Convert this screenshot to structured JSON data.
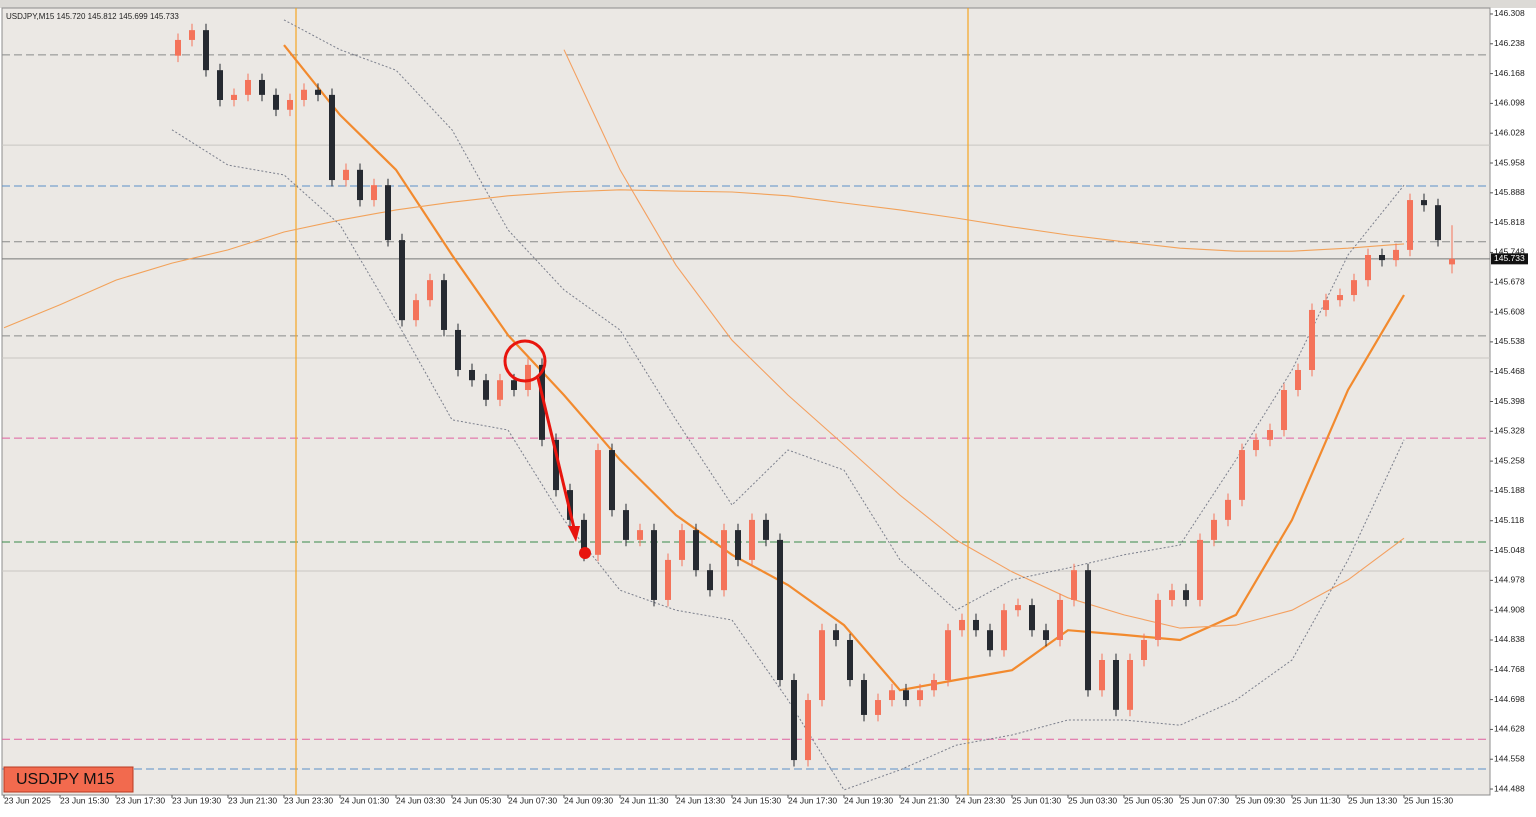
{
  "chart_data": {
    "type": "candlestick",
    "header": "USDJPY,M15 145.720 145.812 145.699 145.733",
    "symbol_label": "USDJPY M15",
    "current_price": 145.733,
    "bull_color": "#f4735a",
    "bear_color": "#262a31",
    "ylim": [
      144.474,
      146.322
    ],
    "yticks": [
      146.308,
      146.238,
      146.168,
      146.098,
      146.028,
      145.958,
      145.888,
      145.818,
      145.748,
      145.678,
      145.608,
      145.538,
      145.468,
      145.398,
      145.328,
      145.258,
      145.188,
      145.118,
      145.048,
      144.978,
      144.908,
      144.838,
      144.768,
      144.698,
      144.628,
      144.558,
      144.488
    ],
    "categories": [
      "23 Jun 2025",
      "23 Jun 15:30",
      "23 Jun 17:30",
      "23 Jun 19:30",
      "23 Jun 21:30",
      "23 Jun 23:30",
      "24 Jun 01:30",
      "24 Jun 03:30",
      "24 Jun 05:30",
      "24 Jun 07:30",
      "24 Jun 09:30",
      "24 Jun 11:30",
      "24 Jun 13:30",
      "24 Jun 15:30",
      "24 Jun 17:30",
      "24 Jun 19:30",
      "24 Jun 21:30",
      "24 Jun 23:30",
      "25 Jun 01:30",
      "25 Jun 03:30",
      "25 Jun 05:30",
      "25 Jun 07:30",
      "25 Jun 09:30",
      "25 Jun 11:30",
      "25 Jun 13:30",
      "25 Jun 15:30"
    ],
    "levels": [
      {
        "value": 146.212,
        "color": "#8a8a8a",
        "style": "dashed"
      },
      {
        "value": 146.0,
        "color": "#c8c6c2",
        "style": "solid"
      },
      {
        "value": 145.904,
        "color": "#5b8fc9",
        "style": "dashed"
      },
      {
        "value": 145.773,
        "color": "#8a8a8a",
        "style": "dashed"
      },
      {
        "value": 145.552,
        "color": "#8a8a8a",
        "style": "dashed"
      },
      {
        "value": 145.5,
        "color": "#c8c6c2",
        "style": "solid"
      },
      {
        "value": 145.312,
        "color": "#e0609f",
        "style": "dashed"
      },
      {
        "value": 145.068,
        "color": "#3a8a4a",
        "style": "dashed"
      },
      {
        "value": 145.0,
        "color": "#c8c6c2",
        "style": "solid"
      },
      {
        "value": 144.605,
        "color": "#e0609f",
        "style": "dashed"
      },
      {
        "value": 144.535,
        "color": "#5b8fc9",
        "style": "dashed"
      }
    ],
    "candles": [
      [
        146.21,
        146.262,
        146.195,
        146.247
      ],
      [
        146.247,
        146.285,
        146.232,
        146.27
      ],
      [
        146.27,
        146.285,
        146.161,
        146.176
      ],
      [
        146.176,
        146.191,
        146.091,
        146.106
      ],
      [
        146.106,
        146.133,
        146.091,
        146.118
      ],
      [
        146.118,
        146.168,
        146.103,
        146.153
      ],
      [
        146.153,
        146.168,
        146.103,
        146.118
      ],
      [
        146.118,
        146.133,
        146.068,
        146.083
      ],
      [
        146.083,
        146.121,
        146.068,
        146.106
      ],
      [
        146.106,
        146.145,
        146.091,
        146.13
      ],
      [
        146.13,
        146.145,
        146.103,
        146.118
      ],
      [
        146.118,
        146.133,
        145.903,
        145.918
      ],
      [
        145.918,
        145.957,
        145.903,
        145.942
      ],
      [
        145.942,
        145.957,
        145.856,
        145.871
      ],
      [
        145.871,
        145.921,
        145.856,
        145.906
      ],
      [
        145.906,
        145.921,
        145.762,
        145.777
      ],
      [
        145.777,
        145.792,
        145.574,
        145.589
      ],
      [
        145.589,
        145.651,
        145.574,
        145.636
      ],
      [
        145.636,
        145.698,
        145.621,
        145.683
      ],
      [
        145.683,
        145.698,
        145.551,
        145.566
      ],
      [
        145.566,
        145.581,
        145.457,
        145.472
      ],
      [
        145.472,
        145.487,
        145.433,
        145.448
      ],
      [
        145.448,
        145.463,
        145.387,
        145.402
      ],
      [
        145.402,
        145.463,
        145.387,
        145.448
      ],
      [
        145.448,
        145.463,
        145.41,
        145.425
      ],
      [
        145.425,
        145.499,
        145.41,
        145.484
      ],
      [
        145.484,
        145.499,
        145.293,
        145.308
      ],
      [
        145.308,
        145.323,
        145.175,
        145.19
      ],
      [
        145.19,
        145.205,
        145.105,
        145.12
      ],
      [
        145.12,
        145.135,
        145.023,
        145.038
      ],
      [
        145.038,
        145.299,
        145.023,
        145.284
      ],
      [
        145.284,
        145.299,
        145.128,
        145.143
      ],
      [
        145.143,
        145.158,
        145.058,
        145.073
      ],
      [
        145.073,
        145.111,
        145.058,
        145.096
      ],
      [
        145.096,
        145.111,
        144.917,
        144.932
      ],
      [
        144.932,
        145.041,
        144.917,
        145.026
      ],
      [
        145.026,
        145.111,
        145.011,
        145.096
      ],
      [
        145.096,
        145.111,
        144.987,
        145.002
      ],
      [
        145.002,
        145.017,
        144.94,
        144.955
      ],
      [
        144.955,
        145.111,
        144.94,
        145.096
      ],
      [
        145.096,
        145.111,
        145.011,
        145.026
      ],
      [
        145.026,
        145.135,
        145.011,
        145.12
      ],
      [
        145.12,
        145.135,
        145.058,
        145.073
      ],
      [
        145.073,
        145.088,
        144.729,
        144.744
      ],
      [
        144.744,
        144.759,
        144.541,
        144.556
      ],
      [
        144.556,
        144.712,
        144.541,
        144.697
      ],
      [
        144.697,
        144.876,
        144.682,
        144.861
      ],
      [
        144.861,
        144.876,
        144.823,
        144.838
      ],
      [
        144.838,
        144.853,
        144.729,
        144.744
      ],
      [
        144.744,
        144.759,
        144.647,
        144.662
      ],
      [
        144.662,
        144.712,
        144.647,
        144.697
      ],
      [
        144.697,
        144.735,
        144.682,
        144.72
      ],
      [
        144.72,
        144.735,
        144.682,
        144.697
      ],
      [
        144.697,
        144.735,
        144.682,
        144.72
      ],
      [
        144.72,
        144.759,
        144.705,
        144.744
      ],
      [
        144.744,
        144.876,
        144.729,
        144.861
      ],
      [
        144.861,
        144.9,
        144.846,
        144.885
      ],
      [
        144.885,
        144.9,
        144.846,
        144.861
      ],
      [
        144.861,
        144.876,
        144.799,
        144.814
      ],
      [
        144.814,
        144.923,
        144.799,
        144.908
      ],
      [
        144.908,
        144.935,
        144.893,
        144.92
      ],
      [
        144.92,
        144.935,
        144.846,
        144.861
      ],
      [
        144.861,
        144.876,
        144.823,
        144.838
      ],
      [
        144.838,
        144.947,
        144.823,
        144.932
      ],
      [
        144.932,
        145.017,
        144.917,
        145.002
      ],
      [
        145.002,
        145.017,
        144.705,
        144.72
      ],
      [
        144.72,
        144.806,
        144.705,
        144.791
      ],
      [
        144.791,
        144.806,
        144.659,
        144.674
      ],
      [
        144.674,
        144.806,
        144.659,
        144.791
      ],
      [
        144.791,
        144.853,
        144.776,
        144.838
      ],
      [
        144.838,
        144.947,
        144.823,
        144.932
      ],
      [
        144.932,
        144.97,
        144.917,
        144.955
      ],
      [
        144.955,
        144.97,
        144.917,
        144.932
      ],
      [
        144.932,
        145.088,
        144.917,
        145.073
      ],
      [
        145.073,
        145.135,
        145.058,
        145.12
      ],
      [
        145.12,
        145.182,
        145.105,
        145.167
      ],
      [
        145.167,
        145.299,
        145.152,
        145.284
      ],
      [
        145.284,
        145.323,
        145.269,
        145.308
      ],
      [
        145.308,
        145.346,
        145.293,
        145.331
      ],
      [
        145.331,
        145.44,
        145.316,
        145.425
      ],
      [
        145.425,
        145.487,
        145.41,
        145.472
      ],
      [
        145.472,
        145.628,
        145.457,
        145.613
      ],
      [
        145.613,
        145.651,
        145.598,
        145.636
      ],
      [
        145.636,
        145.663,
        145.621,
        145.648
      ],
      [
        145.648,
        145.698,
        145.633,
        145.683
      ],
      [
        145.683,
        145.757,
        145.668,
        145.742
      ],
      [
        145.742,
        145.757,
        145.715,
        145.73
      ],
      [
        145.73,
        145.769,
        145.715,
        145.754
      ],
      [
        145.754,
        145.886,
        145.739,
        145.871
      ],
      [
        145.871,
        145.886,
        145.844,
        145.859
      ],
      [
        145.859,
        145.874,
        145.762,
        145.777
      ],
      [
        145.72,
        145.812,
        145.699,
        145.733
      ]
    ],
    "series": [
      {
        "color": "#f28a2e",
        "style": "thick",
        "values": [
          null,
          null,
          null,
          null,
          null,
          146.235,
          146.071,
          145.942,
          145.742,
          145.554,
          145.413,
          145.261,
          145.131,
          145.038,
          144.967,
          144.873,
          144.72,
          144.744,
          144.767,
          144.861,
          144.85,
          144.838,
          144.897,
          145.12,
          145.425,
          145.648
        ]
      },
      {
        "color": "#f2a25a",
        "style": "thin",
        "values": [
          145.571,
          145.625,
          145.683,
          145.723,
          145.754,
          145.796,
          145.824,
          145.848,
          145.866,
          145.881,
          145.89,
          145.895,
          145.892,
          145.89,
          145.881,
          145.864,
          145.848,
          145.829,
          145.808,
          145.789,
          145.773,
          145.758,
          145.751,
          145.751,
          145.758,
          145.768
        ]
      },
      {
        "color": "#f4a060",
        "style": "thin",
        "values": [
          null,
          null,
          null,
          null,
          null,
          null,
          null,
          null,
          null,
          null,
          146.224,
          145.942,
          145.718,
          145.542,
          145.413,
          145.296,
          145.178,
          145.073,
          144.998,
          144.937,
          144.897,
          144.866,
          144.873,
          144.908,
          144.979,
          145.077
        ]
      },
      {
        "color": "#7b7f8c",
        "style": "dotted",
        "values": [
          null,
          null,
          null,
          null,
          null,
          146.294,
          146.224,
          146.176,
          146.036,
          145.801,
          145.66,
          145.566,
          145.355,
          145.155,
          145.284,
          145.237,
          145.026,
          144.908,
          144.979,
          145.007,
          145.038,
          145.061,
          145.261,
          145.472,
          145.742,
          145.906
        ]
      },
      {
        "color": "#7b7f8c",
        "style": "dotted",
        "values": [
          null,
          null,
          null,
          146.036,
          145.953,
          145.93,
          145.813,
          145.589,
          145.355,
          145.331,
          145.12,
          144.955,
          144.908,
          144.885,
          144.697,
          144.486,
          144.533,
          144.591,
          144.615,
          144.65,
          144.65,
          144.638,
          144.697,
          144.791,
          145.026,
          145.308
        ]
      }
    ]
  }
}
